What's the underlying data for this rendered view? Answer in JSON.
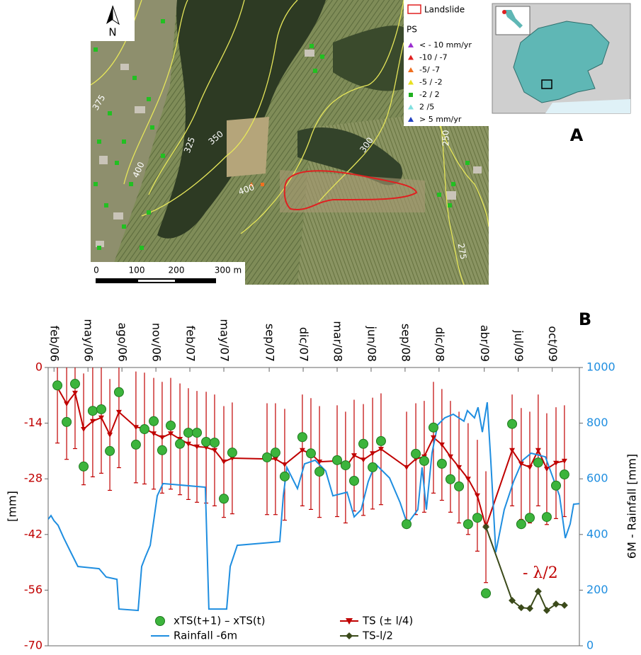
{
  "map": {
    "north": "N",
    "panel_label": "A",
    "contour_labels": [
      "375",
      "350",
      "325",
      "400",
      "400",
      "300",
      "250",
      "275"
    ],
    "scale_labels": [
      "0",
      "100",
      "200",
      "300 m"
    ],
    "legend": {
      "landslide": "Landslide",
      "landslide_color": "#e02020",
      "ps_title": "PS",
      "classes": [
        {
          "label": "< - 10 mm/yr",
          "color": "#9b30d0",
          "marker": "triangle"
        },
        {
          "label": "-10 / -7",
          "color": "#e02020",
          "marker": "triangle"
        },
        {
          "label": "-5/ -7",
          "color": "#f07020",
          "marker": "triangle"
        },
        {
          "label": "-5 / -2",
          "color": "#e8e020",
          "marker": "triangle"
        },
        {
          "label": "-2 / 2",
          "color": "#20b020",
          "marker": "square"
        },
        {
          "label": "2 /5",
          "color": "#80e0e0",
          "marker": "triangle"
        },
        {
          "label": "> 5 mm/yr",
          "color": "#2040c0",
          "marker": "triangle"
        }
      ]
    }
  },
  "chart_data": {
    "type": "line",
    "panel_label": "B",
    "ylabel": "[mm]",
    "y2label": "6M - Rainfall [mm]",
    "annotation": "- λ/2",
    "xlim": [
      2006.04,
      2009.95
    ],
    "xticks": [
      {
        "value": 2006.083,
        "label": "feb/06"
      },
      {
        "value": 2006.333,
        "label": "may/06"
      },
      {
        "value": 2006.583,
        "label": "ago/06"
      },
      {
        "value": 2006.833,
        "label": "nov/06"
      },
      {
        "value": 2007.083,
        "label": "feb/07"
      },
      {
        "value": 2007.333,
        "label": "may/07"
      },
      {
        "value": 2007.667,
        "label": "sep/07"
      },
      {
        "value": 2007.917,
        "label": "dic/07"
      },
      {
        "value": 2008.167,
        "label": "mar/08"
      },
      {
        "value": 2008.417,
        "label": "jun/08"
      },
      {
        "value": 2008.667,
        "label": "sep/08"
      },
      {
        "value": 2008.917,
        "label": "dic/08"
      },
      {
        "value": 2009.25,
        "label": "abr/09"
      },
      {
        "value": 2009.5,
        "label": "jul/09"
      },
      {
        "value": 2009.75,
        "label": "oct/09"
      }
    ],
    "ylim": [
      -70,
      0
    ],
    "yticks": [
      -70,
      -56,
      -42,
      -28,
      -14,
      0
    ],
    "ycolor": "#c00000",
    "y2lim": [
      0,
      1000
    ],
    "y2ticks": [
      0,
      200,
      400,
      600,
      800,
      1000
    ],
    "y2color": "#1f8ee0",
    "legend": "bottom",
    "series": [
      {
        "name": "xTS(t+1) – xTS(t)",
        "color": "#3cb43c",
        "mode": "markers",
        "marker": "circle",
        "x": [
          2006.108,
          2006.176,
          2006.238,
          2006.301,
          2006.368,
          2006.431,
          2006.494,
          2006.561,
          2006.686,
          2006.749,
          2006.817,
          2006.879,
          2006.942,
          2007.01,
          2007.072,
          2007.135,
          2007.203,
          2007.265,
          2007.333,
          2007.395,
          2007.651,
          2007.713,
          2007.781,
          2007.911,
          2007.974,
          2008.037,
          2008.167,
          2008.229,
          2008.292,
          2008.36,
          2008.428,
          2008.49,
          2008.678,
          2008.746,
          2008.808,
          2008.876,
          2008.938,
          2009.001,
          2009.064,
          2009.131,
          2009.199,
          2009.262,
          2009.455,
          2009.522,
          2009.585,
          2009.647,
          2009.71,
          2009.778,
          2009.84
        ],
        "values": [
          -4.5,
          -13.7,
          -4.1,
          -24.9,
          -10.9,
          -10.5,
          -21.0,
          -6.2,
          -19.4,
          -15.5,
          -13.5,
          -20.8,
          -14.6,
          -19.2,
          -16.4,
          -16.4,
          -18.7,
          -18.9,
          -33.0,
          -21.4,
          -22.6,
          -21.4,
          -27.4,
          -17.5,
          -21.6,
          -26.2,
          -23.3,
          -24.6,
          -28.5,
          -19.2,
          -25.1,
          -18.5,
          -39.4,
          -21.7,
          -23.5,
          -15.1,
          -24.2,
          -28.1,
          -29.9,
          -39.4,
          -37.8,
          -56.8,
          -14.2,
          -39.4,
          -37.8,
          -23.9,
          -37.6,
          -29.7,
          -26.9
        ]
      },
      {
        "name": "TS (± l/4)",
        "color": "#c00000",
        "mode": "lines+markers",
        "marker": "triangle-down",
        "error": 14,
        "x": [
          2006.108,
          2006.176,
          2006.238,
          2006.301,
          2006.368,
          2006.431,
          2006.494,
          2006.561,
          2006.686,
          2006.749,
          2006.817,
          2006.879,
          2006.942,
          2007.01,
          2007.072,
          2007.135,
          2007.203,
          2007.265,
          2007.333,
          2007.395,
          2007.651,
          2007.713,
          2007.781,
          2007.911,
          2007.974,
          2008.037,
          2008.167,
          2008.229,
          2008.292,
          2008.36,
          2008.428,
          2008.49,
          2008.678,
          2008.746,
          2008.808,
          2008.876,
          2008.938,
          2009.001,
          2009.064,
          2009.131,
          2009.199,
          2009.262,
          2009.455,
          2009.522,
          2009.585,
          2009.647,
          2009.71,
          2009.778,
          2009.84
        ],
        "values": [
          -5.0,
          -9.1,
          -6.4,
          -15.5,
          -13.5,
          -12.6,
          -16.9,
          -11.2,
          -15.0,
          -15.3,
          -16.6,
          -17.6,
          -16.6,
          -18.0,
          -19.2,
          -19.9,
          -20.1,
          -20.8,
          -23.7,
          -22.8,
          -23.0,
          -23.0,
          -24.4,
          -20.8,
          -21.7,
          -23.7,
          -23.5,
          -25.1,
          -22.1,
          -23.2,
          -21.6,
          -20.5,
          -25.1,
          -23.0,
          -22.4,
          -17.6,
          -19.4,
          -22.4,
          -25.1,
          -28.0,
          -32.2,
          -40.1,
          -20.8,
          -24.2,
          -25.1,
          -20.8,
          -25.5,
          -24.0,
          -23.5
        ]
      },
      {
        "name": "Rainfall -6m",
        "color": "#1f8ee0",
        "mode": "lines",
        "axis": "y2",
        "x": [
          2006.04,
          2006.061,
          2006.082,
          2006.113,
          2006.155,
          2006.207,
          2006.259,
          2006.415,
          2006.467,
          2006.546,
          2006.561,
          2006.702,
          2006.728,
          2006.754,
          2006.791,
          2006.843,
          2006.885,
          2007.197,
          2007.223,
          2007.354,
          2007.38,
          2007.432,
          2007.745,
          2007.771,
          2007.797,
          2007.875,
          2007.927,
          2008.005,
          2008.083,
          2008.136,
          2008.24,
          2008.292,
          2008.344,
          2008.396,
          2008.448,
          2008.553,
          2008.631,
          2008.683,
          2008.761,
          2008.792,
          2008.824,
          2008.865,
          2008.907,
          2008.959,
          2009.022,
          2009.1,
          2009.126,
          2009.178,
          2009.204,
          2009.236,
          2009.272,
          2009.298,
          2009.335,
          2009.397,
          2009.465,
          2009.533,
          2009.595,
          2009.7,
          2009.804,
          2009.846,
          2009.882,
          2009.908,
          2009.95
        ],
        "values": [
          455,
          468,
          450,
          433,
          387,
          336,
          285,
          277,
          247,
          239,
          132,
          127,
          285,
          318,
          361,
          539,
          583,
          570,
          132,
          132,
          285,
          361,
          374,
          539,
          641,
          565,
          654,
          667,
          628,
          539,
          552,
          463,
          489,
          590,
          654,
          603,
          514,
          438,
          489,
          641,
          489,
          692,
          794,
          819,
          832,
          807,
          845,
          819,
          857,
          768,
          875,
          667,
          336,
          489,
          590,
          667,
          692,
          679,
          539,
          387,
          438,
          509,
          511
        ]
      },
      {
        "name": "TS-l/2",
        "color": "#3b4a1a",
        "mode": "lines+markers",
        "marker": "diamond",
        "x": [
          2009.262,
          2009.455,
          2009.522,
          2009.585,
          2009.647,
          2009.71,
          2009.778,
          2009.84
        ],
        "values": [
          -40.1,
          -58.6,
          -60.4,
          -60.6,
          -56.3,
          -61.1,
          -59.5,
          -59.8
        ]
      }
    ]
  }
}
